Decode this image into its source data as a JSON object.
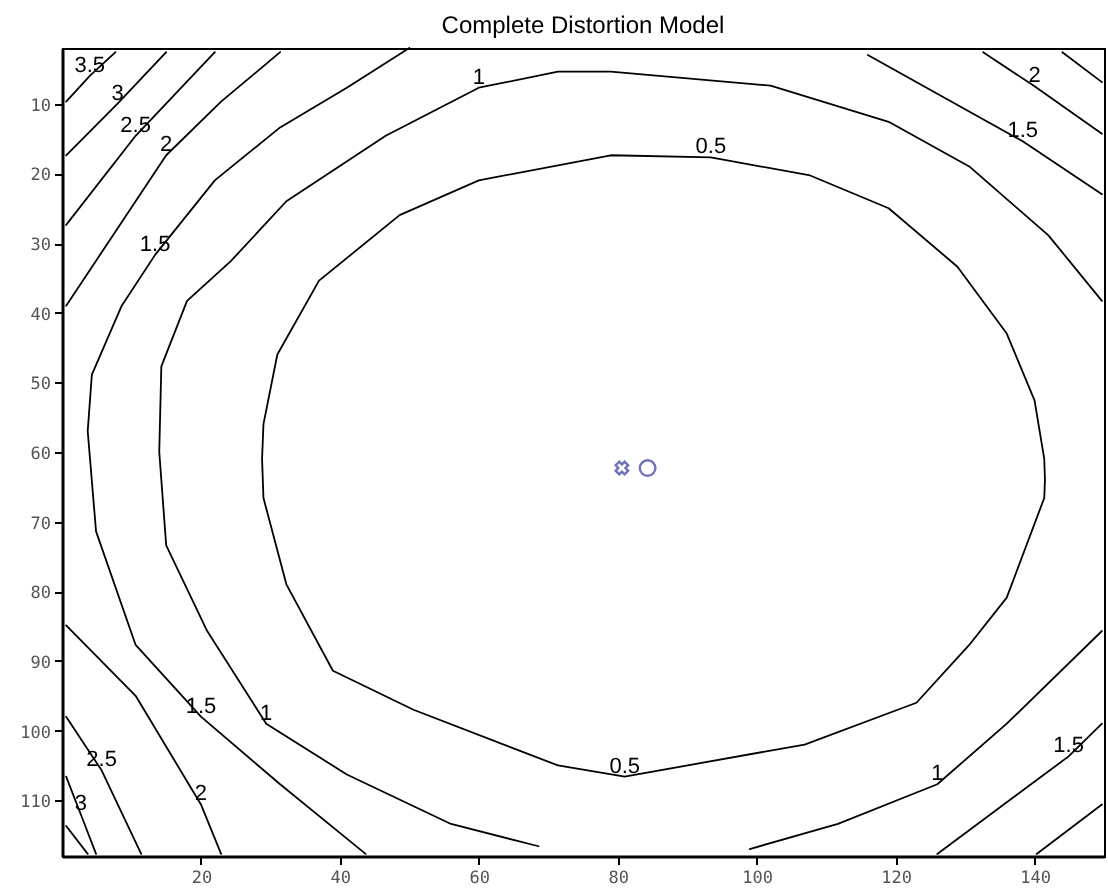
{
  "chart_data": {
    "type": "line",
    "title": "Complete Distortion Model",
    "xlim": [
      0,
      150
    ],
    "ylim": [
      118,
      2
    ],
    "xticks": [
      20,
      40,
      60,
      80,
      100,
      120,
      140
    ],
    "yticks": [
      10,
      20,
      30,
      40,
      50,
      60,
      70,
      80,
      90,
      100,
      110
    ],
    "marker": "none",
    "series": [
      {
        "name": "0.5",
        "color": "#000000",
        "x": [
          28.8,
          29,
          31,
          37,
          48.6,
          60,
          79,
          93.4,
          107.7,
          119,
          128.9,
          136,
          140,
          141.4,
          141.5,
          null,
          141.5,
          141.4,
          136,
          130.6,
          123,
          106.9,
          81,
          71.4,
          50.6,
          39,
          32.3,
          29,
          28.8
        ],
        "values": [
          61,
          56,
          46,
          35.4,
          26,
          21,
          17.4,
          17.7,
          20.3,
          25,
          33.4,
          43,
          52.6,
          61,
          64,
          null,
          64,
          66.6,
          80.9,
          87.7,
          96,
          102,
          106.6,
          105,
          97,
          91.4,
          79,
          66.6,
          61
        ]
      },
      {
        "name": "1",
        "color": "#000000",
        "x": [
          149.7,
          142,
          130.6,
          119,
          102,
          79,
          71.4,
          60,
          46.6,
          32.3,
          24.3,
          18,
          14.3,
          14,
          null,
          14,
          15,
          20.9,
          29.4,
          41,
          56,
          68.6,
          null,
          99,
          111.7,
          126,
          136,
          149.7
        ],
        "values": [
          38.3,
          28.9,
          19,
          12.6,
          7.4,
          5.4,
          5.4,
          7.7,
          14.6,
          24,
          32.6,
          38.3,
          47.7,
          60,
          null,
          60,
          73.4,
          85.7,
          99,
          106.3,
          113.4,
          116.6,
          null,
          117,
          113.4,
          107.7,
          99,
          85.7
        ]
      },
      {
        "name": "1.5",
        "color": "#000000",
        "x": [
          50,
          41,
          31.4,
          22,
          13.4,
          8.6,
          4.3,
          3.7,
          null,
          3.7,
          4.9,
          10.6,
          20,
          31.4,
          43.7,
          null,
          116,
          138.3,
          149.7,
          null,
          126,
          144.9,
          149.7
        ],
        "values": [
          2,
          7.7,
          13.4,
          21,
          31.7,
          39,
          48.9,
          57,
          null,
          57,
          71.4,
          87.7,
          98,
          107.7,
          117.7,
          null,
          3,
          15.4,
          23,
          null,
          117.7,
          103.7,
          99
        ]
      },
      {
        "name": "2",
        "color": "#000000",
        "x": [
          31.4,
          22.9,
          15,
          0.6,
          null,
          0.6,
          10.6,
          20,
          22.9,
          null,
          132.6,
          140,
          149.7,
          null,
          140.3,
          149.7
        ],
        "values": [
          2.6,
          9.7,
          17.4,
          39,
          null,
          84.9,
          95,
          110.6,
          117.7,
          null,
          2.6,
          7.5,
          14.3,
          null,
          117.7,
          110.6
        ]
      },
      {
        "name": "2.5",
        "color": "#000000",
        "x": [
          22,
          10.6,
          0.6,
          null,
          0.6,
          5.7,
          11.4,
          null,
          144,
          149.7
        ],
        "values": [
          2.6,
          14.6,
          27.4,
          null,
          98,
          105.7,
          117.7,
          null,
          2.6,
          6.9
        ]
      },
      {
        "name": "3",
        "color": "#000000",
        "x": [
          15,
          8,
          0.6,
          null,
          0.6,
          2.7,
          4.9
        ],
        "values": [
          2.6,
          10,
          17.4,
          null,
          106.6,
          112,
          117.7
        ]
      },
      {
        "name": "3.5",
        "color": "#000000",
        "x": [
          7.7,
          4,
          0.6,
          null,
          0.6,
          3.7
        ],
        "values": [
          2.6,
          6,
          9.7,
          null,
          113.7,
          117.7
        ]
      },
      {
        "type": "scatter",
        "marker": "cross",
        "color": "#3333aa",
        "x": [
          80.6
        ],
        "values": [
          62.3
        ]
      },
      {
        "type": "scatter",
        "marker": "circle",
        "color": "#3333aa",
        "x": [
          84.3
        ],
        "values": [
          62.3
        ]
      }
    ]
  }
}
